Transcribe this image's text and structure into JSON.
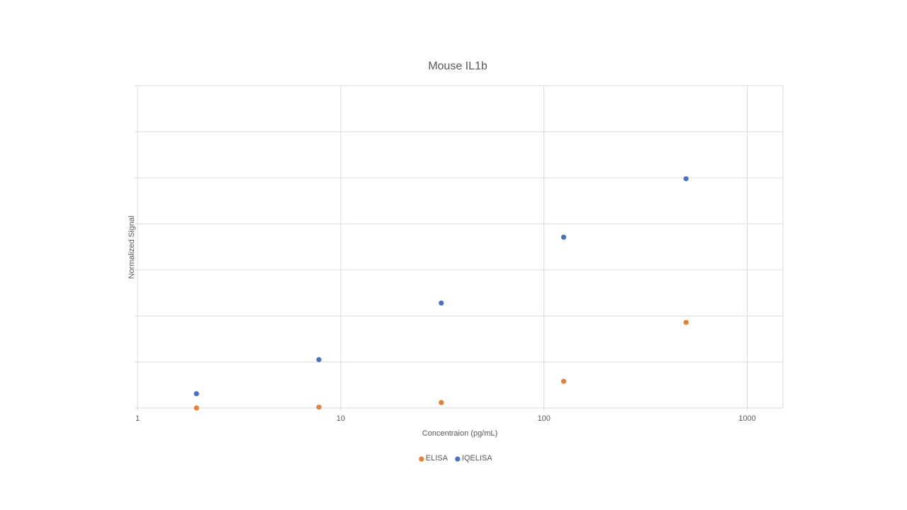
{
  "chart_data": {
    "type": "scatter",
    "title": "Mouse IL1b",
    "x_label": "Concentraion (pg/mL)",
    "y_label": "Normalized Signal",
    "x_scale": "log",
    "xlim": [
      1,
      1500
    ],
    "xticks": [
      1,
      10,
      100,
      1000
    ],
    "ylim": [
      0,
      7
    ],
    "yticks": [
      0,
      1,
      2,
      3,
      4,
      5,
      6,
      7
    ],
    "show_ytick_labels": false,
    "grid": true,
    "legend": "bottom",
    "series": [
      {
        "name": "ELISA",
        "color": "#ed7d31",
        "x": [
          1.95,
          7.81,
          31.25,
          125,
          500
        ],
        "values": [
          0,
          0.02,
          0.12,
          0.58,
          1.86
        ]
      },
      {
        "name": "IQELISA",
        "color": "#4472c4",
        "x": [
          1.95,
          7.81,
          31.25,
          125,
          500
        ],
        "values": [
          0.31,
          1.05,
          2.28,
          3.71,
          4.98
        ]
      }
    ]
  }
}
